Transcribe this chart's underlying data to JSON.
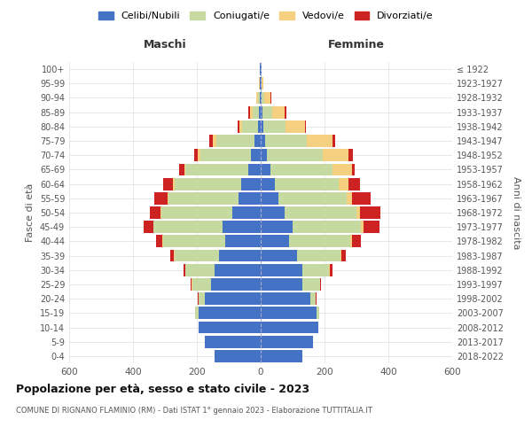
{
  "age_groups": [
    "0-4",
    "5-9",
    "10-14",
    "15-19",
    "20-24",
    "25-29",
    "30-34",
    "35-39",
    "40-44",
    "45-49",
    "50-54",
    "55-59",
    "60-64",
    "65-69",
    "70-74",
    "75-79",
    "80-84",
    "85-89",
    "90-94",
    "95-99",
    "100+"
  ],
  "birth_years": [
    "2018-2022",
    "2013-2017",
    "2008-2012",
    "2003-2007",
    "1998-2002",
    "1993-1997",
    "1988-1992",
    "1983-1987",
    "1978-1982",
    "1973-1977",
    "1968-1972",
    "1963-1967",
    "1958-1962",
    "1953-1957",
    "1948-1952",
    "1943-1947",
    "1938-1942",
    "1933-1937",
    "1928-1932",
    "1923-1927",
    "≤ 1922"
  ],
  "maschi": {
    "celibi": [
      145,
      175,
      195,
      195,
      175,
      155,
      145,
      130,
      110,
      120,
      90,
      70,
      60,
      40,
      30,
      20,
      8,
      5,
      3,
      2,
      2
    ],
    "coniugati": [
      0,
      0,
      0,
      10,
      20,
      60,
      90,
      140,
      195,
      215,
      220,
      220,
      210,
      195,
      160,
      120,
      50,
      20,
      5,
      2,
      0
    ],
    "vedovi": [
      0,
      0,
      0,
      0,
      0,
      2,
      2,
      2,
      2,
      2,
      3,
      3,
      5,
      5,
      8,
      10,
      10,
      8,
      5,
      2,
      0
    ],
    "divorziati": [
      0,
      0,
      0,
      0,
      2,
      2,
      5,
      10,
      20,
      30,
      35,
      40,
      30,
      15,
      10,
      10,
      5,
      5,
      2,
      0,
      0
    ]
  },
  "femmine": {
    "nubili": [
      130,
      165,
      180,
      175,
      155,
      130,
      130,
      115,
      90,
      100,
      75,
      55,
      45,
      30,
      20,
      15,
      8,
      5,
      3,
      2,
      2
    ],
    "coniugate": [
      0,
      0,
      0,
      8,
      18,
      55,
      85,
      135,
      190,
      215,
      225,
      215,
      200,
      195,
      175,
      130,
      70,
      30,
      8,
      2,
      0
    ],
    "vedove": [
      0,
      0,
      0,
      0,
      0,
      2,
      2,
      3,
      5,
      8,
      10,
      15,
      30,
      60,
      80,
      80,
      60,
      40,
      20,
      5,
      0
    ],
    "divorziate": [
      0,
      0,
      0,
      0,
      2,
      2,
      8,
      15,
      30,
      50,
      65,
      60,
      35,
      10,
      15,
      8,
      5,
      5,
      2,
      0,
      0
    ]
  },
  "colors": {
    "celibi": "#4472c4",
    "coniugati": "#c5d9a0",
    "vedovi": "#f5d080",
    "divorziati": "#cc2222"
  },
  "legend_labels": [
    "Celibi/Nubili",
    "Coniugati/e",
    "Vedovi/e",
    "Divorziati/e"
  ],
  "title1": "Popolazione per età, sesso e stato civile - 2023",
  "title2": "COMUNE DI RIGNANO FLAMINIO (RM) - Dati ISTAT 1° gennaio 2023 - Elaborazione TUTTITALIA.IT",
  "xlabel_left": "Maschi",
  "xlabel_right": "Femmine",
  "ylabel_left": "Fasce di età",
  "ylabel_right": "Anni di nascita",
  "xlim": 600,
  "bg_color": "#ffffff",
  "grid_color": "#dddddd",
  "bar_height": 0.85
}
